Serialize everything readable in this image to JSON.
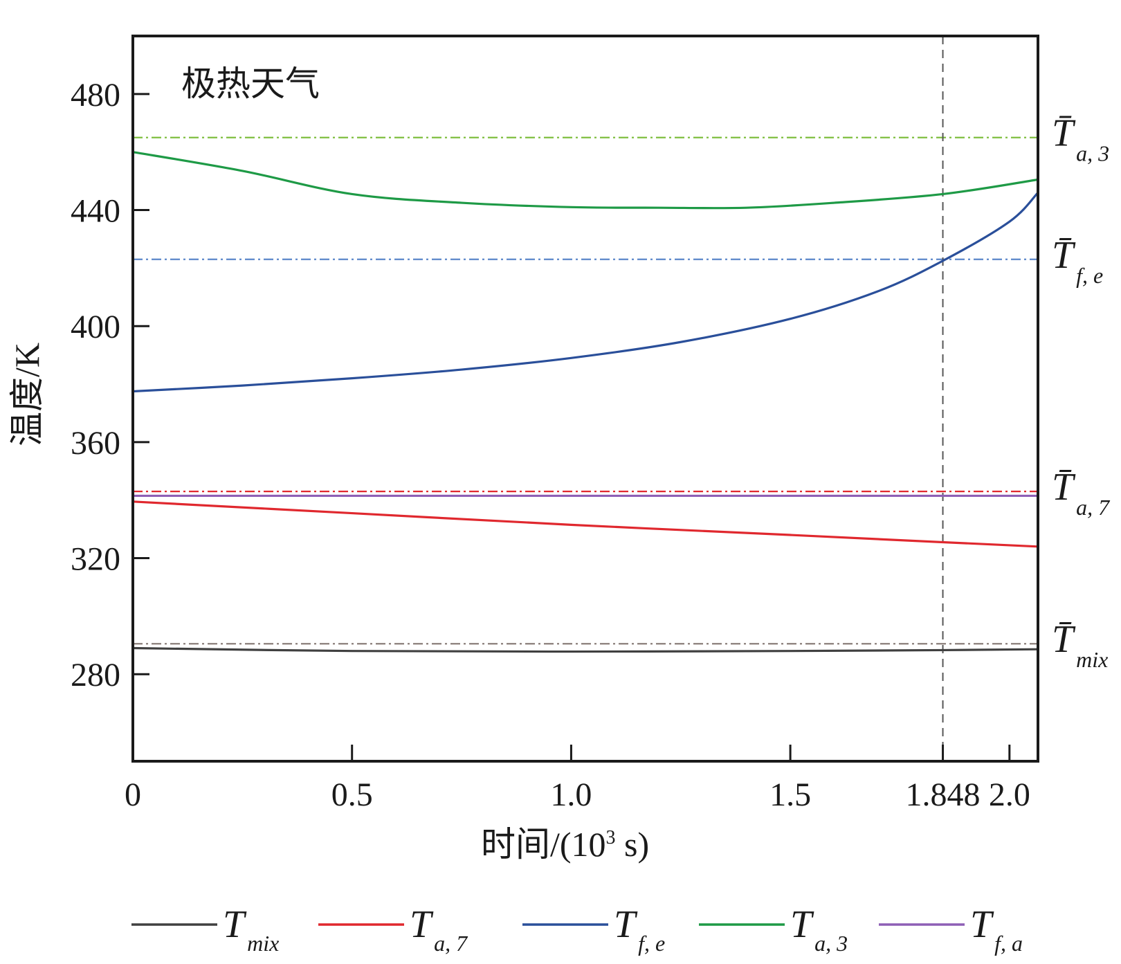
{
  "chart_data": {
    "type": "line",
    "title": "",
    "annotation": "极热天气",
    "xlabel": "时间/(10",
    "xlabel_sup": "3",
    "xlabel_suffix": " s)",
    "ylabel": "温度/K",
    "xlim": [
      0,
      2.065
    ],
    "ylim": [
      250,
      500
    ],
    "xticks": [
      0,
      0.5,
      1.0,
      1.5,
      1.848,
      2.0
    ],
    "xtick_labels": [
      "0",
      "0.5",
      "1.0",
      "1.5",
      "1.848",
      "2.0"
    ],
    "yticks": [
      280,
      320,
      360,
      400,
      440,
      480
    ],
    "ytick_labels": [
      "280",
      "320",
      "360",
      "400",
      "440",
      "480"
    ],
    "vline": {
      "x": 1.848,
      "color": "#555555"
    },
    "grid": false,
    "legend_position": "bottom",
    "series": [
      {
        "id": "Tmix",
        "name": "T",
        "sub": "mix",
        "color": "#404040",
        "x": [
          0,
          0.5,
          1.0,
          1.5,
          1.848,
          2.065
        ],
        "y": [
          289,
          288,
          287.8,
          288,
          288.3,
          288.6
        ]
      },
      {
        "id": "Ta7",
        "name": "T",
        "sub": "a, 7",
        "color": "#e0282e",
        "x": [
          0,
          0.5,
          1.0,
          1.5,
          1.848,
          2.065
        ],
        "y": [
          339.5,
          335.5,
          331.5,
          328,
          325.5,
          324
        ]
      },
      {
        "id": "Tfe",
        "name": "T",
        "sub": "f, e",
        "color": "#2a4f9a",
        "x": [
          0,
          0.25,
          0.5,
          0.75,
          1.0,
          1.25,
          1.5,
          1.7,
          1.848,
          2.0,
          2.065
        ],
        "y": [
          377.5,
          379.5,
          382,
          385,
          389,
          394.5,
          402.5,
          412,
          422.5,
          436,
          446
        ]
      },
      {
        "id": "Ta3",
        "name": "T",
        "sub": "a, 3",
        "color": "#1e9a46",
        "x": [
          0,
          0.25,
          0.5,
          0.75,
          1.0,
          1.2,
          1.4,
          1.6,
          1.848,
          2.065
        ],
        "y": [
          460,
          453.5,
          445.5,
          442.5,
          441,
          440.8,
          440.8,
          442.5,
          445.5,
          450.5
        ]
      },
      {
        "id": "Tfa",
        "name": "T",
        "sub": "f, a",
        "color": "#8e5fb5",
        "x": [
          0,
          2.065
        ],
        "y": [
          341.5,
          341.5
        ]
      }
    ],
    "reference_lines": [
      {
        "id": "Ta3_bar",
        "y": 465,
        "color": "#7fbf3f",
        "label": "T̄",
        "sub": "a, 3"
      },
      {
        "id": "Tfe_bar",
        "y": 423,
        "color": "#5b86c9",
        "label": "T̄",
        "sub": "f, e"
      },
      {
        "id": "Ta7_bar",
        "y": 343,
        "color": "#e0282e",
        "label": "T̄",
        "sub": "a, 7"
      },
      {
        "id": "Tmix_bar",
        "y": 290.5,
        "color": "#8a7f7a",
        "label": "T̄",
        "sub": "mix"
      }
    ]
  }
}
